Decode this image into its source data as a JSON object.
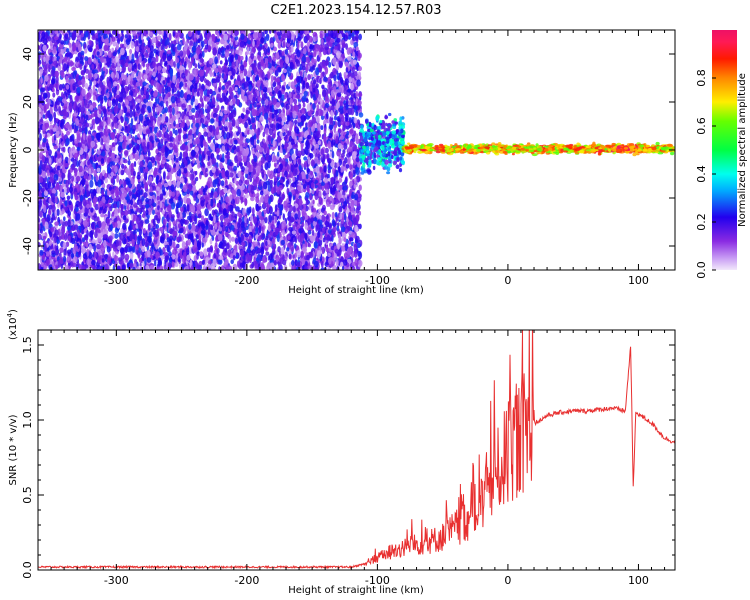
{
  "title": "C2E1.2023.154.12.57.R03",
  "colors": {
    "snr_line": "#e83030",
    "frame": "#000000",
    "noise_purple": "#7b1cf0"
  },
  "chart_data": [
    {
      "type": "heatmap",
      "xlabel": "Height of straight line (km)",
      "ylabel": "Frequency (Hz)",
      "xlim": [
        -360,
        128
      ],
      "ylim": [
        -50,
        50
      ],
      "xticks": [
        -300,
        -200,
        -100,
        0,
        100
      ],
      "yticks": [
        -40,
        -20,
        0,
        20,
        40
      ],
      "colorbar": {
        "label": "Normalized spectral amplitude",
        "range": [
          0,
          1
        ],
        "ticks": [
          "0.0",
          "0.2",
          "0.4",
          "0.6",
          "0.8"
        ],
        "colormap": "rainbow (magenta-purple-blue-cyan-green-yellow-red-pink)"
      },
      "features": [
        {
          "region": "noise",
          "x_range": [
            -360,
            -113
          ],
          "freq_range": [
            -50,
            50
          ],
          "level": 0.15
        },
        {
          "region": "onset",
          "x_range": [
            -113,
            -80
          ],
          "freq_range": [
            -13,
            17
          ],
          "level": 0.3
        },
        {
          "region": "narrowband_line",
          "x_range": [
            -80,
            128
          ],
          "freq_range": [
            -2,
            3
          ],
          "level": 0.75
        },
        {
          "region": "peak",
          "x_range": [
            80,
            98
          ],
          "freq_range": [
            -1,
            2
          ],
          "level": 0.9
        }
      ]
    },
    {
      "type": "line",
      "xlabel": "Height of straight line (km)",
      "ylabel": "SNR (10 * v/v)",
      "scale_label": "(x10",
      "scale_exponent": "4",
      "xlim": [
        -360,
        128
      ],
      "ylim": [
        0,
        1.6
      ],
      "xticks": [
        -300,
        -200,
        -100,
        0,
        100
      ],
      "yticks": [
        "0.0",
        "0.5",
        "1.0",
        "1.5"
      ],
      "series": [
        {
          "x": [
            -360,
            -300,
            -200,
            -120,
            -110,
            -100,
            -90,
            -80,
            -70,
            -60,
            -50,
            -40,
            -30,
            -20,
            -15,
            -10,
            -5,
            0,
            5,
            10,
            15,
            20,
            25,
            30,
            40,
            50,
            60,
            70,
            80,
            90,
            94,
            96,
            98,
            100,
            110,
            120,
            128
          ],
          "y": [
            0.02,
            0.02,
            0.02,
            0.02,
            0.04,
            0.08,
            0.12,
            0.15,
            0.17,
            0.19,
            0.22,
            0.28,
            0.35,
            0.45,
            0.55,
            0.62,
            0.7,
            0.78,
            0.85,
            0.9,
            0.95,
            0.98,
            1.0,
            1.03,
            1.05,
            1.06,
            1.06,
            1.07,
            1.08,
            1.06,
            1.5,
            0.55,
            1.05,
            1.04,
            0.98,
            0.88,
            0.85
          ]
        }
      ]
    }
  ]
}
